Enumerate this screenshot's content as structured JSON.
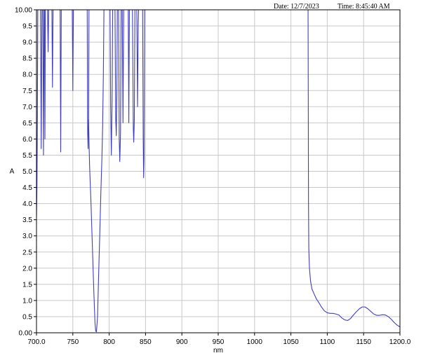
{
  "header": {
    "date_text": "Date: 12/7/2023",
    "time_text": "Time: 8:45:40 AM"
  },
  "chart_data": {
    "type": "line",
    "xlabel": "nm",
    "ylabel": "A",
    "xlim": [
      700,
      1200
    ],
    "ylim": [
      0,
      10
    ],
    "grid": true,
    "x_ticks": [
      700,
      750,
      800,
      850,
      900,
      950,
      1000,
      1050,
      1100,
      1150,
      1200
    ],
    "x_tick_labels": [
      "700.0",
      "750",
      "800",
      "850",
      "900",
      "950",
      "1000",
      "1050",
      "1100",
      "1150",
      "1200.0"
    ],
    "y_ticks": [
      0,
      0.5,
      1,
      1.5,
      2,
      2.5,
      3,
      3.5,
      4,
      4.5,
      5,
      5.5,
      6,
      6.5,
      7,
      7.5,
      8,
      8.5,
      9,
      9.5,
      10
    ],
    "y_tick_labels": [
      "0.00",
      "0.5",
      "1.0",
      "1.5",
      "2.0",
      "2.5",
      "3.0",
      "3.5",
      "4.0",
      "4.5",
      "5.0",
      "5.5",
      "6.0",
      "6.5",
      "7.0",
      "7.5",
      "8.0",
      "8.5",
      "9.0",
      "9.5",
      "10.00"
    ],
    "line_color": "#3f3fbf",
    "grid_color": "#c8c8c8",
    "series": [
      {
        "segments": [
          [
            [
              700.0,
              3.6
            ],
            [
              700.6,
              4.5
            ],
            [
              701.2,
              6.5
            ],
            [
              701.8,
              10
            ]
          ],
          [
            [
              705.5,
              10
            ],
            [
              706.5,
              5.7
            ],
            [
              707.5,
              10
            ]
          ],
          [
            [
              708.8,
              10
            ],
            [
              709.6,
              5.5
            ],
            [
              710.5,
              10
            ]
          ],
          [
            [
              711.0,
              10
            ],
            [
              711.6,
              6.0
            ],
            [
              712.2,
              10
            ]
          ],
          [
            [
              715.2,
              10
            ],
            [
              716.0,
              8.7
            ],
            [
              716.8,
              10
            ]
          ],
          [
            [
              721.2,
              10
            ],
            [
              722.0,
              7.6
            ],
            [
              722.8,
              10
            ]
          ],
          [
            [
              732.5,
              10
            ],
            [
              733.3,
              5.6
            ],
            [
              734.1,
              10
            ]
          ],
          [
            [
              749.2,
              10
            ],
            [
              750.0,
              7.5
            ],
            [
              750.8,
              10
            ]
          ],
          [
            [
              769.8,
              10
            ],
            [
              770.4,
              6.2
            ],
            [
              771.0,
              5.7
            ],
            [
              771.6,
              6.6
            ],
            [
              772.2,
              10
            ]
          ],
          [
            [
              771.6,
              6.6
            ],
            [
              773.0,
              5.2
            ],
            [
              775.0,
              4.0
            ],
            [
              777.0,
              2.6
            ],
            [
              779.0,
              1.2
            ],
            [
              780.5,
              0.3
            ],
            [
              781.5,
              0.05
            ],
            [
              782.5,
              0.03
            ],
            [
              784.0,
              0.5
            ],
            [
              785.5,
              1.8
            ],
            [
              787.0,
              3.0
            ],
            [
              788.5,
              4.3
            ],
            [
              790.0,
              5.4
            ],
            [
              791.0,
              6.4
            ],
            [
              792.0,
              8.0
            ],
            [
              792.8,
              10
            ]
          ],
          [
            [
              801.2,
              10
            ],
            [
              802.0,
              7.0
            ],
            [
              803.0,
              5.5
            ],
            [
              804.0,
              7.2
            ],
            [
              804.8,
              10
            ]
          ],
          [
            [
              808.0,
              10
            ],
            [
              809.0,
              6.6
            ],
            [
              809.8,
              6.1
            ],
            [
              810.6,
              7.4
            ],
            [
              811.2,
              10
            ]
          ],
          [
            [
              813.0,
              10
            ],
            [
              813.8,
              6.0
            ],
            [
              814.6,
              5.3
            ],
            [
              815.6,
              6.2
            ],
            [
              816.4,
              10
            ]
          ],
          [
            [
              818.0,
              10
            ],
            [
              819.0,
              6.5
            ],
            [
              820.0,
              10
            ]
          ],
          [
            [
              826.2,
              10
            ],
            [
              827.0,
              6.5
            ],
            [
              827.8,
              10
            ]
          ],
          [
            [
              832.0,
              10
            ],
            [
              833.2,
              6.3
            ],
            [
              833.8,
              5.9
            ],
            [
              834.6,
              6.6
            ],
            [
              835.4,
              10
            ]
          ],
          [
            [
              838.0,
              10
            ],
            [
              839.0,
              7.0
            ],
            [
              840.0,
              9.6
            ],
            [
              840.5,
              10
            ]
          ],
          [
            [
              846.0,
              10
            ],
            [
              846.8,
              6.0
            ],
            [
              847.4,
              4.8
            ],
            [
              848.0,
              5.4
            ],
            [
              848.6,
              10
            ]
          ],
          [
            [
              1073.6,
              10
            ],
            [
              1073.9,
              7.0
            ],
            [
              1074.2,
              4.0
            ],
            [
              1074.6,
              2.6
            ],
            [
              1075.5,
              2.0
            ],
            [
              1077.0,
              1.6
            ],
            [
              1079.0,
              1.35
            ],
            [
              1082.0,
              1.2
            ],
            [
              1085.0,
              1.05
            ],
            [
              1088.0,
              0.95
            ],
            [
              1092.0,
              0.8
            ],
            [
              1096.0,
              0.68
            ],
            [
              1100.0,
              0.62
            ],
            [
              1104.0,
              0.6
            ],
            [
              1108.0,
              0.6
            ],
            [
              1112.0,
              0.58
            ],
            [
              1116.0,
              0.55
            ],
            [
              1120.0,
              0.46
            ],
            [
              1124.0,
              0.4
            ],
            [
              1128.0,
              0.38
            ],
            [
              1132.0,
              0.44
            ],
            [
              1136.0,
              0.55
            ],
            [
              1140.0,
              0.65
            ],
            [
              1144.0,
              0.74
            ],
            [
              1148.0,
              0.8
            ],
            [
              1152.0,
              0.8
            ],
            [
              1156.0,
              0.74
            ],
            [
              1160.0,
              0.66
            ],
            [
              1164.0,
              0.58
            ],
            [
              1168.0,
              0.54
            ],
            [
              1172.0,
              0.54
            ],
            [
              1176.0,
              0.56
            ],
            [
              1180.0,
              0.55
            ],
            [
              1184.0,
              0.5
            ],
            [
              1188.0,
              0.42
            ],
            [
              1192.0,
              0.32
            ],
            [
              1196.0,
              0.24
            ],
            [
              1200.0,
              0.18
            ]
          ]
        ]
      }
    ]
  }
}
